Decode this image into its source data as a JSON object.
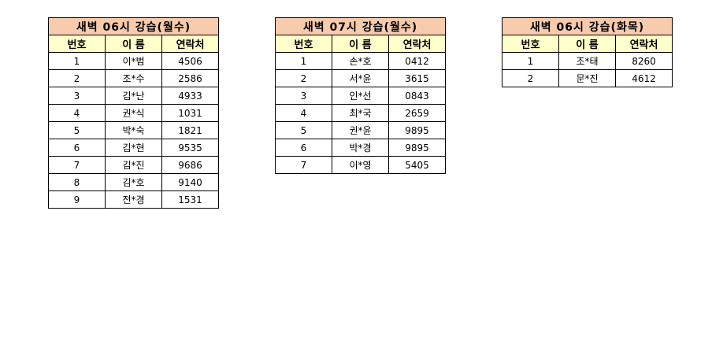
{
  "colors": {
    "title_bg": "#f8cbad",
    "header_bg": "#ffffcc"
  },
  "tables": [
    {
      "title": "새벽 06시 강습(월수)",
      "headers": [
        "번호",
        "이 름",
        "연락처"
      ],
      "rows": [
        [
          "1",
          "이*범",
          "4506"
        ],
        [
          "2",
          "조*수",
          "2586"
        ],
        [
          "3",
          "김*난",
          "4933"
        ],
        [
          "4",
          "권*식",
          "1031"
        ],
        [
          "5",
          "박*숙",
          "1821"
        ],
        [
          "6",
          "김*현",
          "9535"
        ],
        [
          "7",
          "김*진",
          "9686"
        ],
        [
          "8",
          "김*호",
          "9140"
        ],
        [
          "9",
          "전*경",
          "1531"
        ]
      ]
    },
    {
      "title": "새벽 07시 강습(월수)",
      "headers": [
        "번호",
        "이 름",
        "연락처"
      ],
      "rows": [
        [
          "1",
          "손*호",
          "0412"
        ],
        [
          "2",
          "서*윤",
          "3615"
        ],
        [
          "3",
          "인*선",
          "0843"
        ],
        [
          "4",
          "최*국",
          "2659"
        ],
        [
          "5",
          "권*윤",
          "9895"
        ],
        [
          "6",
          "박*경",
          "9895"
        ],
        [
          "7",
          "이*영",
          "5405"
        ]
      ]
    },
    {
      "title": "새벽 06시 강습(화목)",
      "headers": [
        "번호",
        "이 름",
        "연락처"
      ],
      "rows": [
        [
          "1",
          "조*태",
          "8260"
        ],
        [
          "2",
          "문*진",
          "4612"
        ]
      ]
    }
  ]
}
